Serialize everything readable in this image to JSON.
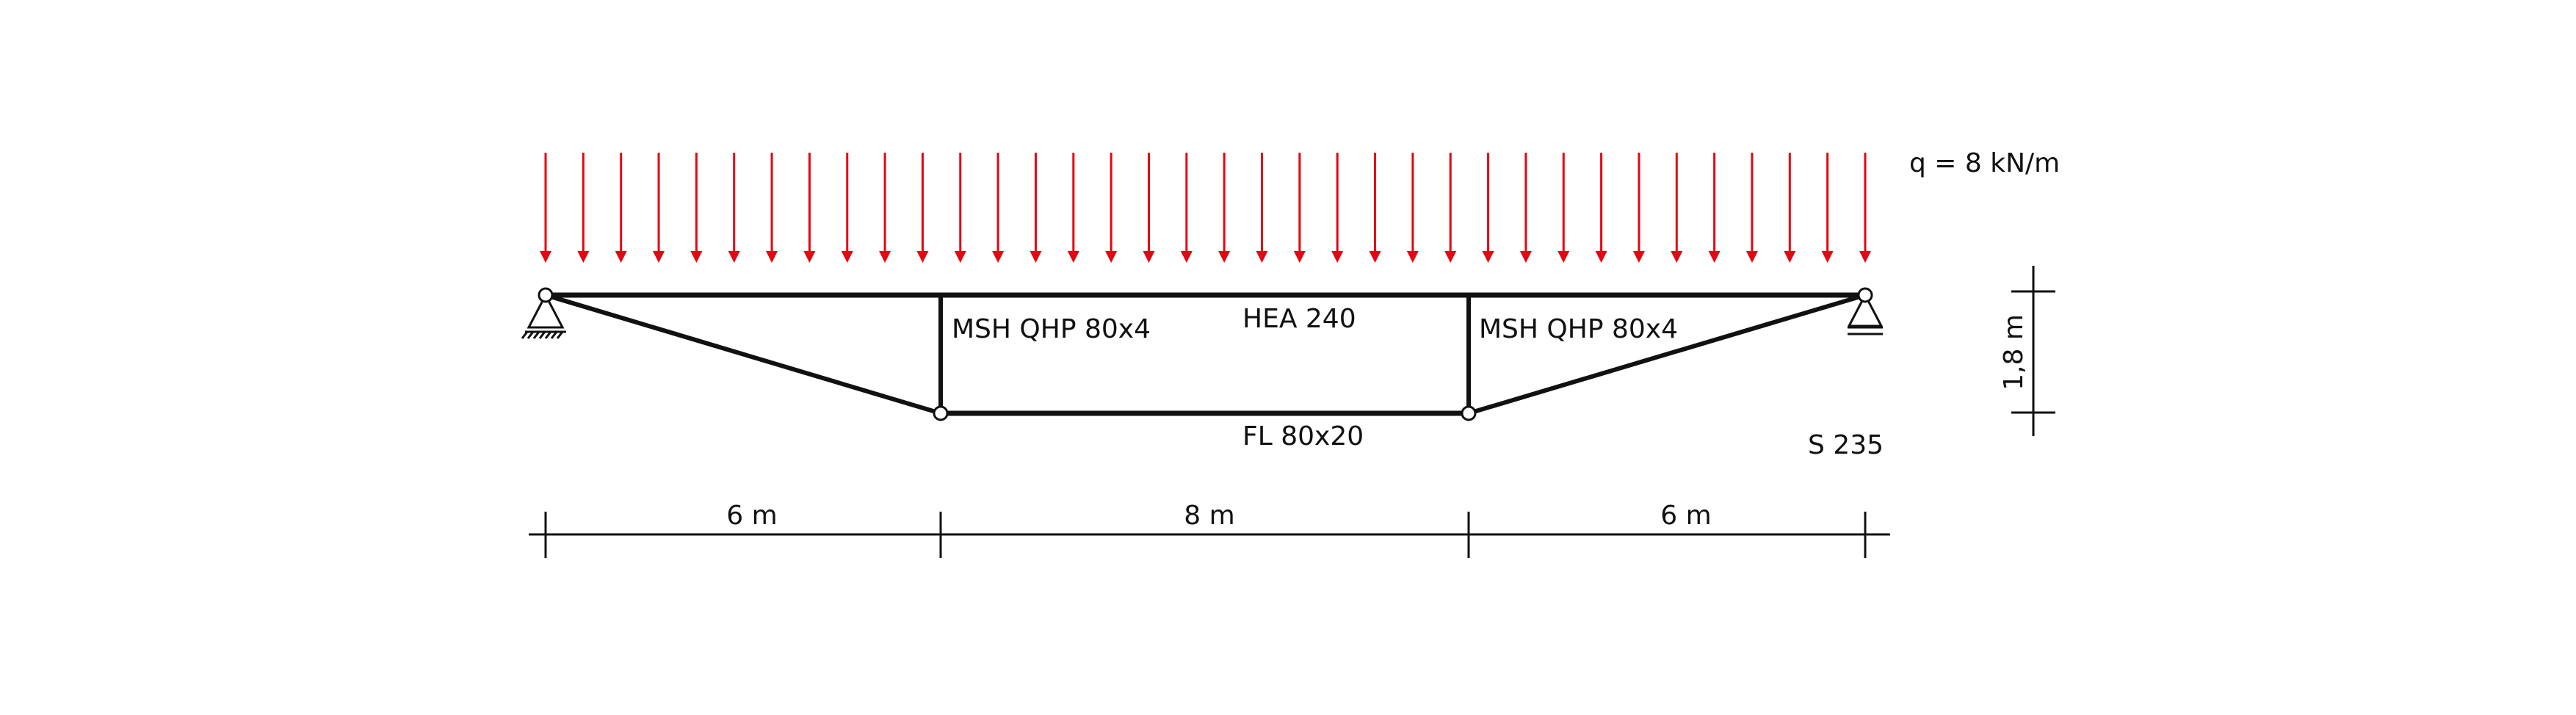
{
  "load": {
    "label": "q = 8 kN/m",
    "arrow_count": 36,
    "color": "#e30613"
  },
  "members": {
    "top_chord": "HEA 240",
    "left_post": "MSH QHP 80x4",
    "right_post": "MSH QHP 80x4",
    "bottom_chord": "FL 80x20"
  },
  "material": "S 235",
  "dimensions": {
    "height": "1,8 m",
    "spans": [
      "6 m",
      "8 m",
      "6 m"
    ]
  },
  "colors": {
    "structure": "#111111",
    "load": "#e30613"
  }
}
